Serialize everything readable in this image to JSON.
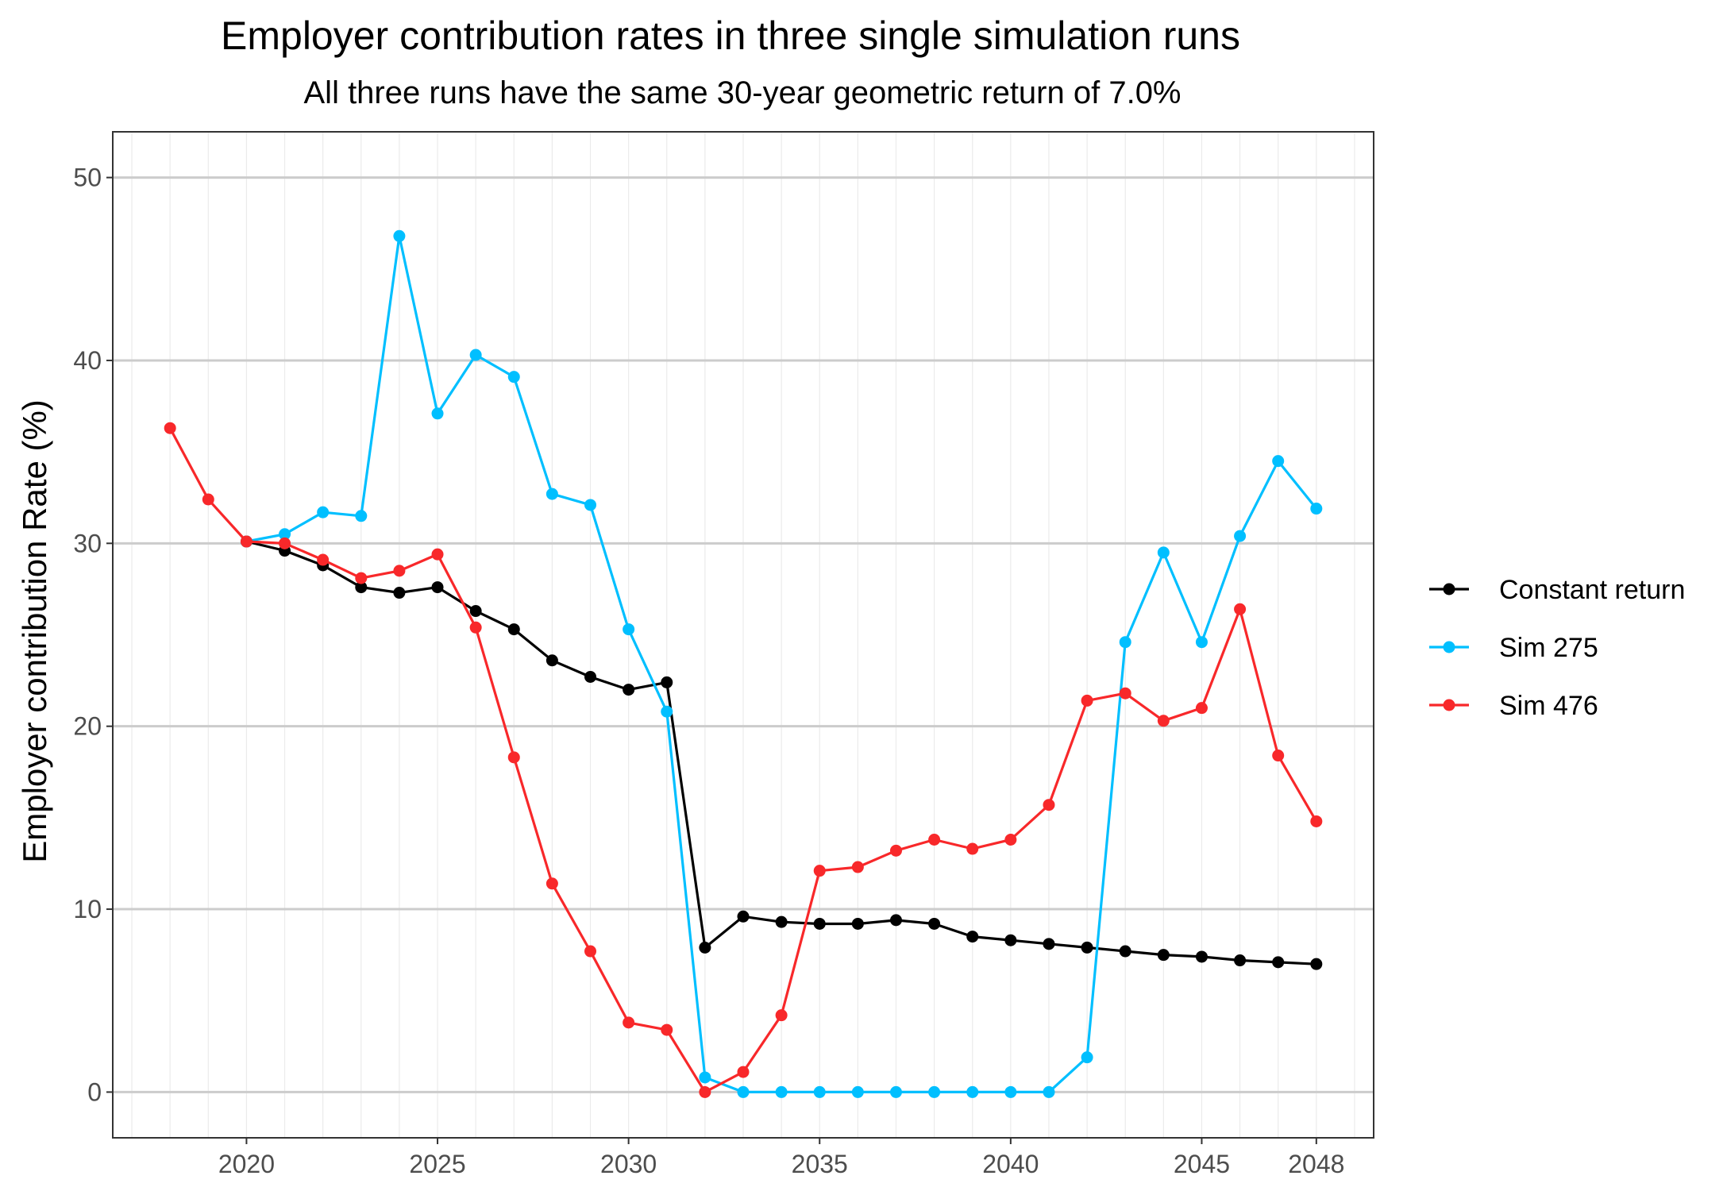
{
  "chart_data": {
    "type": "line",
    "title": "Employer contribution rates in three single simulation runs",
    "subtitle": "All three runs have the same 30-year geometric return of 7.0%",
    "xlabel": "",
    "ylabel": "Employer contribution Rate (%)",
    "xlim": [
      2016.5,
      2049.5
    ],
    "ylim": [
      -2.5,
      52.5
    ],
    "x_ticks": [
      2020,
      2025,
      2030,
      2035,
      2040,
      2045,
      2048
    ],
    "y_ticks": [
      0,
      10,
      20,
      30,
      40,
      50
    ],
    "grid": true,
    "legend_position": "right",
    "series": [
      {
        "name": "Constant return",
        "color": "#000000",
        "x": [
          2020,
          2021,
          2022,
          2023,
          2024,
          2025,
          2026,
          2027,
          2028,
          2029,
          2030,
          2031,
          2032,
          2033,
          2034,
          2035,
          2036,
          2037,
          2038,
          2039,
          2040,
          2041,
          2042,
          2043,
          2044,
          2045,
          2046,
          2047,
          2048
        ],
        "y": [
          30.1,
          29.6,
          28.8,
          27.6,
          27.3,
          27.6,
          26.3,
          25.3,
          23.6,
          22.7,
          22.0,
          22.4,
          7.9,
          9.6,
          9.3,
          9.2,
          9.2,
          9.4,
          9.2,
          8.5,
          8.3,
          8.1,
          7.9,
          7.7,
          7.5,
          7.4,
          7.2,
          7.1,
          7.0
        ]
      },
      {
        "name": "Sim 275",
        "color": "#00BFFF",
        "x": [
          2020,
          2021,
          2022,
          2023,
          2024,
          2025,
          2026,
          2027,
          2028,
          2029,
          2030,
          2031,
          2032,
          2033,
          2034,
          2035,
          2036,
          2037,
          2038,
          2039,
          2040,
          2041,
          2042,
          2043,
          2044,
          2045,
          2046,
          2047,
          2048
        ],
        "y": [
          30.1,
          30.5,
          31.7,
          31.5,
          46.8,
          37.1,
          40.3,
          39.1,
          32.7,
          32.1,
          25.3,
          20.8,
          0.8,
          0.0,
          0.0,
          0.0,
          0.0,
          0.0,
          0.0,
          0.0,
          0.0,
          0.0,
          1.9,
          24.6,
          29.5,
          24.6,
          30.4,
          34.5,
          31.9
        ]
      },
      {
        "name": "Sim 476",
        "color": "#F8282A",
        "x": [
          2018,
          2019,
          2020,
          2021,
          2022,
          2023,
          2024,
          2025,
          2026,
          2027,
          2028,
          2029,
          2030,
          2031,
          2032,
          2033,
          2034,
          2035,
          2036,
          2037,
          2038,
          2039,
          2040,
          2041,
          2042,
          2043,
          2044,
          2045,
          2046,
          2047,
          2048
        ],
        "y": [
          36.3,
          32.4,
          30.1,
          30.0,
          29.1,
          28.1,
          28.5,
          29.4,
          25.4,
          18.3,
          11.4,
          7.7,
          3.8,
          3.4,
          0.0,
          1.1,
          4.2,
          12.1,
          12.3,
          13.2,
          13.8,
          13.3,
          13.8,
          15.7,
          21.4,
          21.8,
          20.3,
          21.0,
          26.4,
          18.4,
          14.8
        ]
      }
    ]
  }
}
